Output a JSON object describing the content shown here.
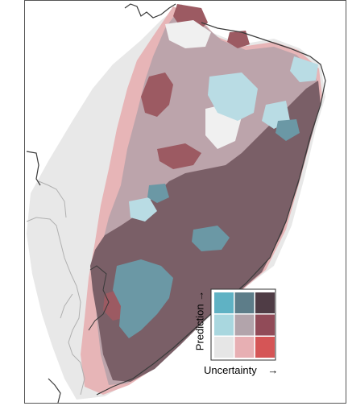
{
  "legend": {
    "y_label": "Prediction",
    "y_arrow": "→",
    "x_label": "Uncertainty",
    "x_arrow": "→",
    "grid": [
      [
        "#5fb2c4",
        "#5d7d89",
        "#4f3c45"
      ],
      [
        "#a9d7df",
        "#b2a4ab",
        "#914b58"
      ],
      [
        "#e6e6e6",
        "#e7afb3",
        "#d55556"
      ]
    ]
  },
  "map": {
    "region_colors": {
      "outside": "#e8e8e8",
      "light_red": "#e7b5b7",
      "mauve": "#bca4ab",
      "dark_mauve": "#7a5f67",
      "dark_red": "#9c5a62",
      "light_blue": "#b9dce4",
      "teal": "#6b98a5",
      "white_patch": "#f0f0f0"
    }
  }
}
